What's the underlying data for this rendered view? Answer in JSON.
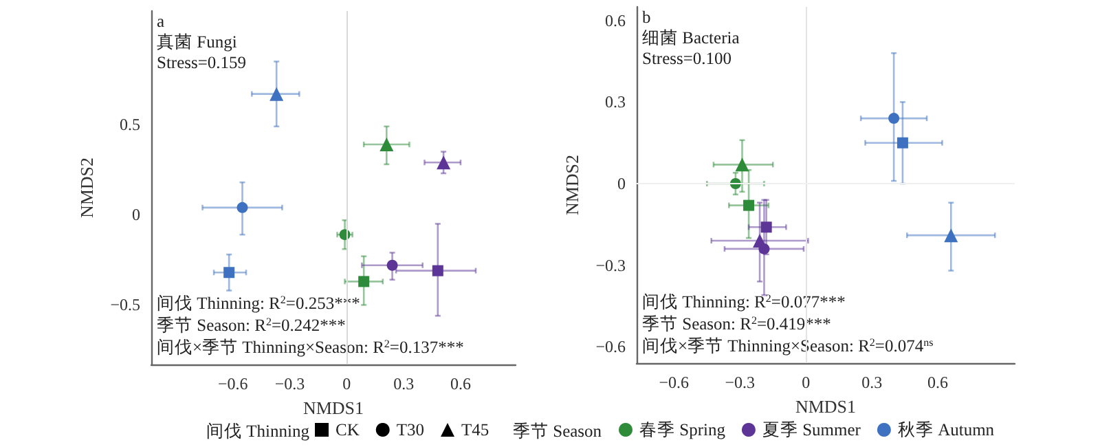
{
  "chart_data": [
    {
      "type": "scatter",
      "xlabel": "NMDS1",
      "ylabel": "NMDS2",
      "xlim": [
        -1.03,
        0.89
      ],
      "ylim": [
        -0.83,
        1.13
      ],
      "xticks": [
        -0.6,
        -0.3,
        0,
        0.3,
        0.6
      ],
      "yticks": [
        -0.5,
        0,
        0.5
      ],
      "grid": false,
      "legend": "bottom",
      "legend_title": "间伐 Thinning",
      "ref_lines": [
        {
          "axis": "x",
          "value": 0,
          "color": "#d9d9d9"
        }
      ],
      "annotations": [
        "a",
        "真菌 Fungi",
        "Stress=0.159",
        "间伐 Thinning: R$^{2}$=0.253***",
        "季节 Season: R$^{2}$=0.242***",
        "间伐×季节 Thinning×Season: R$^{2}$=0.137***"
      ],
      "series": [
        {
          "color": "#2e8b3a",
          "marker": [
            "square",
            "circle",
            "triangle"
          ],
          "x": [
            0.09,
            -0.01,
            0.21
          ],
          "values": [
            -0.37,
            -0.11,
            0.39
          ],
          "xerrors": [
            [
              -0.01,
              0.19
            ],
            [
              -0.05,
              0.03
            ],
            [
              0.09,
              0.33
            ]
          ],
          "errors": [
            [
              -0.5,
              -0.23
            ],
            [
              -0.19,
              -0.03
            ],
            [
              0.28,
              0.49
            ]
          ]
        },
        {
          "color": "#5c3596",
          "marker": [
            "square",
            "circle",
            "triangle"
          ],
          "x": [
            0.48,
            0.24,
            0.51
          ],
          "values": [
            -0.31,
            -0.28,
            0.29
          ],
          "xerrors": [
            [
              0.26,
              0.68
            ],
            [
              0.08,
              0.4
            ],
            [
              0.41,
              0.6
            ]
          ],
          "errors": [
            [
              -0.56,
              -0.05
            ],
            [
              -0.36,
              -0.21
            ],
            [
              0.23,
              0.35
            ]
          ]
        },
        {
          "color": "#3e72c0",
          "marker": [
            "square",
            "circle",
            "triangle"
          ],
          "x": [
            -0.62,
            -0.55,
            -0.37
          ],
          "values": [
            -0.32,
            0.04,
            0.67
          ],
          "xerrors": [
            [
              -0.7,
              -0.53
            ],
            [
              -0.76,
              -0.34
            ],
            [
              -0.5,
              -0.25
            ]
          ],
          "errors": [
            [
              -0.42,
              -0.22
            ],
            [
              -0.11,
              0.18
            ],
            [
              0.49,
              0.85
            ]
          ]
        },
        {
          "name": "CK",
          "color": "#000000",
          "marker": "square"
        },
        {
          "name": "T30",
          "color": "#000000",
          "marker": "circle"
        },
        {
          "name": "T45",
          "color": "#000000",
          "marker": "triangle"
        }
      ]
    },
    {
      "type": "scatter",
      "xlabel": "NMDS1",
      "ylabel": "NMDS2",
      "xlim": [
        -0.77,
        0.95
      ],
      "ylim": [
        -0.66,
        0.65
      ],
      "xticks": [
        -0.6,
        -0.3,
        0,
        0.3,
        0.6
      ],
      "yticks": [
        -0.6,
        -0.3,
        0,
        0.3,
        0.6
      ],
      "grid": false,
      "legend": "bottom",
      "legend_title": "季节 Season",
      "ref_lines": [
        {
          "axis": "x",
          "value": 0,
          "color": "#e3e3e3"
        },
        {
          "axis": "y",
          "value": 0,
          "color": "#f0f0f0"
        }
      ],
      "annotations": [
        "b",
        "细菌 Bacteria",
        "Stress=0.100",
        "间伐 Thinning: R$^{2}$=0.077***",
        "季节 Season: R$^{2}$=0.419***",
        "间伐×季节 Thinning×Season: R$^{2}$=0.074$^{ns}$"
      ],
      "series": [
        {
          "name": "春季 Spring",
          "color": "#2e8b3a",
          "marker": [
            "square",
            "circle",
            "triangle"
          ],
          "x": [
            -0.26,
            -0.32,
            -0.29
          ],
          "values": [
            -0.08,
            0.0,
            0.07
          ],
          "xerrors": [
            [
              -0.35,
              -0.17
            ],
            [
              -0.45,
              -0.19
            ],
            [
              -0.42,
              -0.15
            ]
          ],
          "errors": [
            [
              -0.2,
              0.05
            ],
            [
              -0.04,
              0.04
            ],
            [
              -0.03,
              0.16
            ]
          ]
        },
        {
          "name": "夏季 Summer",
          "color": "#5c3596",
          "marker": [
            "square",
            "circle",
            "triangle"
          ],
          "x": [
            -0.18,
            -0.19,
            -0.21
          ],
          "values": [
            -0.16,
            -0.24,
            -0.21
          ],
          "xerrors": [
            [
              -0.26,
              -0.09
            ],
            [
              -0.37,
              -0.01
            ],
            [
              -0.43,
              0.01
            ]
          ],
          "errors": [
            [
              -0.26,
              -0.06
            ],
            [
              -0.41,
              -0.06
            ],
            [
              -0.36,
              -0.07
            ]
          ]
        },
        {
          "name": "秋季 Autumn",
          "color": "#3e72c0",
          "marker": [
            "square",
            "circle",
            "triangle"
          ],
          "x": [
            0.44,
            0.4,
            0.66
          ],
          "values": [
            0.15,
            0.24,
            -0.19
          ],
          "xerrors": [
            [
              0.27,
              0.62
            ],
            [
              0.25,
              0.55
            ],
            [
              0.46,
              0.86
            ]
          ],
          "errors": [
            [
              0.0,
              0.3
            ],
            [
              0.01,
              0.48
            ],
            [
              -0.32,
              -0.07
            ]
          ]
        }
      ]
    }
  ]
}
